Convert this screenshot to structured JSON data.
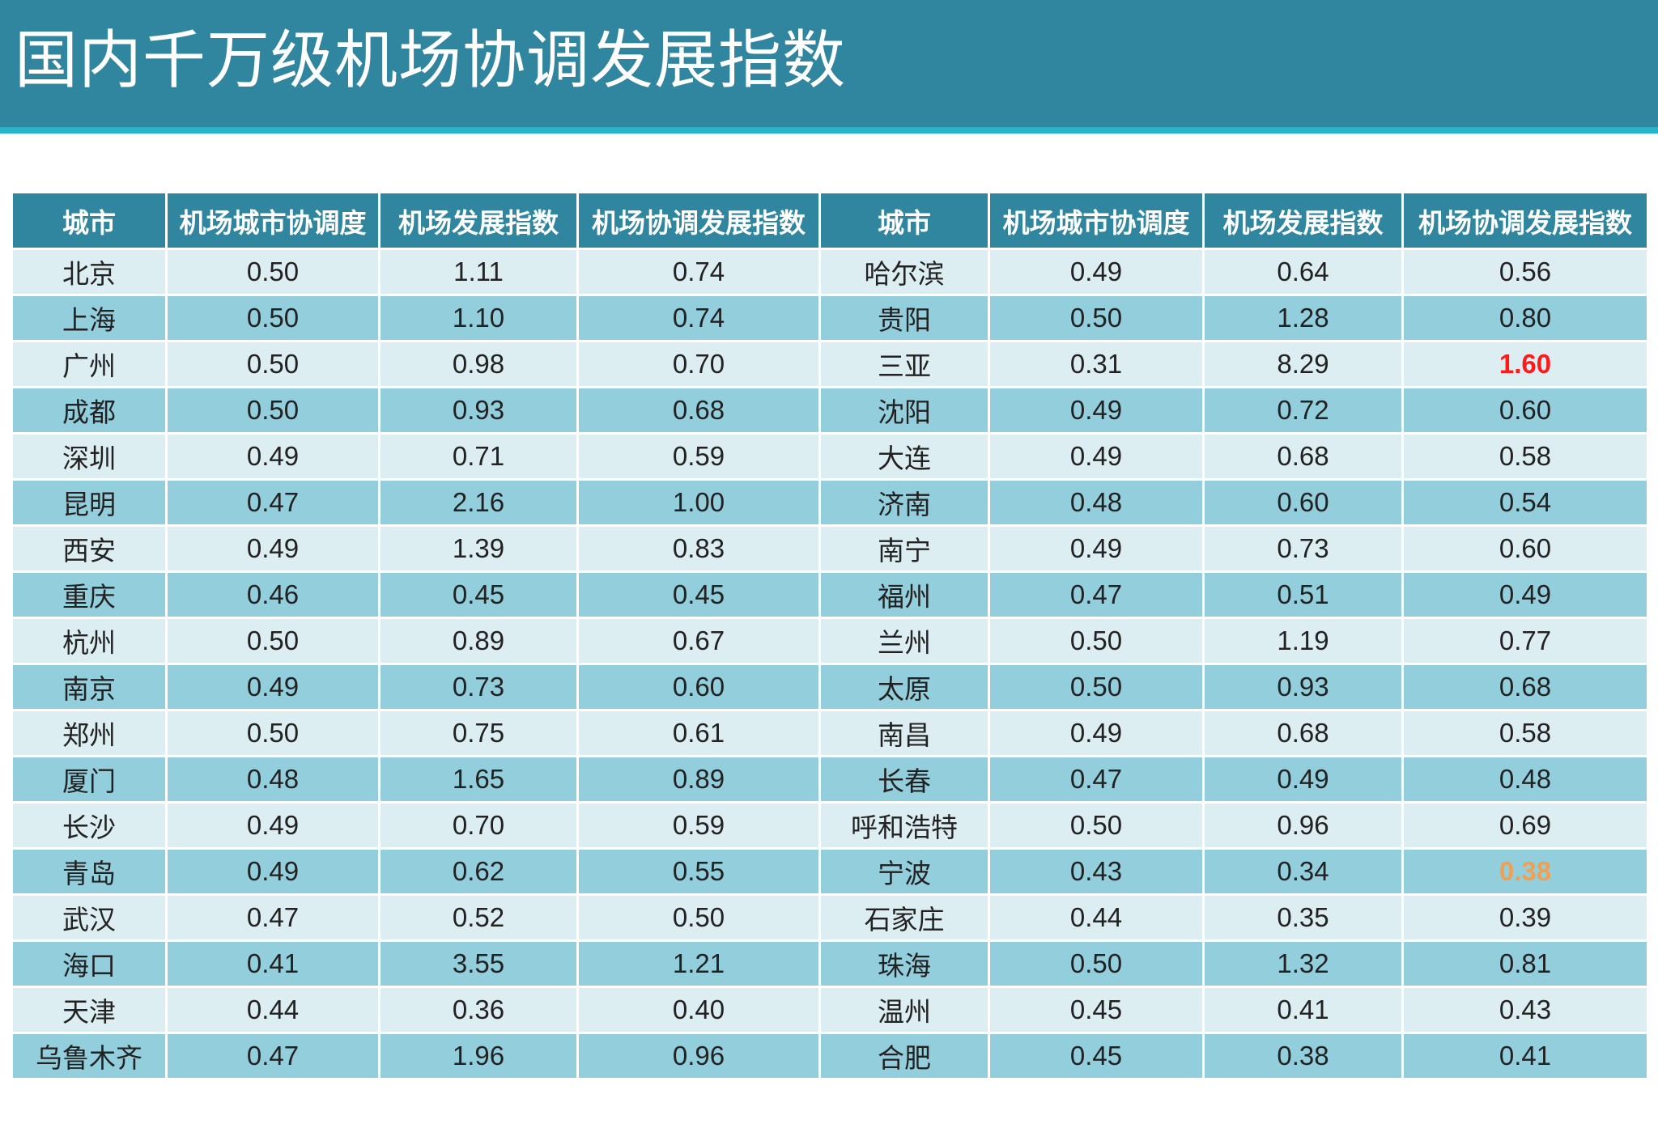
{
  "title": "国内千万级机场协调发展指数",
  "colors": {
    "header_bg": "#30869E",
    "accent_line": "#24B4CC",
    "row_light": "#DDEEF3",
    "row_dark": "#93CEDD",
    "highlight_red": "#FF1A1A",
    "highlight_orange": "#F0A050"
  },
  "table": {
    "headers": [
      "城市",
      "机场城市协调度",
      "机场发展指数",
      "机场协调发展指数",
      "城市",
      "机场城市协调度",
      "机场发展指数",
      "机场协调发展指数"
    ],
    "rows": [
      [
        "北京",
        "0.50",
        "1.11",
        "0.74",
        "哈尔滨",
        "0.49",
        "0.64",
        "0.56"
      ],
      [
        "上海",
        "0.50",
        "1.10",
        "0.74",
        "贵阳",
        "0.50",
        "1.28",
        "0.80"
      ],
      [
        "广州",
        "0.50",
        "0.98",
        "0.70",
        "三亚",
        "0.31",
        "8.29",
        "1.60"
      ],
      [
        "成都",
        "0.50",
        "0.93",
        "0.68",
        "沈阳",
        "0.49",
        "0.72",
        "0.60"
      ],
      [
        "深圳",
        "0.49",
        "0.71",
        "0.59",
        "大连",
        "0.49",
        "0.68",
        "0.58"
      ],
      [
        "昆明",
        "0.47",
        "2.16",
        "1.00",
        "济南",
        "0.48",
        "0.60",
        "0.54"
      ],
      [
        "西安",
        "0.49",
        "1.39",
        "0.83",
        "南宁",
        "0.49",
        "0.73",
        "0.60"
      ],
      [
        "重庆",
        "0.46",
        "0.45",
        "0.45",
        "福州",
        "0.47",
        "0.51",
        "0.49"
      ],
      [
        "杭州",
        "0.50",
        "0.89",
        "0.67",
        "兰州",
        "0.50",
        "1.19",
        "0.77"
      ],
      [
        "南京",
        "0.49",
        "0.73",
        "0.60",
        "太原",
        "0.50",
        "0.93",
        "0.68"
      ],
      [
        "郑州",
        "0.50",
        "0.75",
        "0.61",
        "南昌",
        "0.49",
        "0.68",
        "0.58"
      ],
      [
        "厦门",
        "0.48",
        "1.65",
        "0.89",
        "长春",
        "0.47",
        "0.49",
        "0.48"
      ],
      [
        "长沙",
        "0.49",
        "0.70",
        "0.59",
        "呼和浩特",
        "0.50",
        "0.96",
        "0.69"
      ],
      [
        "青岛",
        "0.49",
        "0.62",
        "0.55",
        "宁波",
        "0.43",
        "0.34",
        "0.38"
      ],
      [
        "武汉",
        "0.47",
        "0.52",
        "0.50",
        "石家庄",
        "0.44",
        "0.35",
        "0.39"
      ],
      [
        "海口",
        "0.41",
        "3.55",
        "1.21",
        "珠海",
        "0.50",
        "1.32",
        "0.81"
      ],
      [
        "天津",
        "0.44",
        "0.36",
        "0.40",
        "温州",
        "0.45",
        "0.41",
        "0.43"
      ],
      [
        "乌鲁木齐",
        "0.47",
        "1.96",
        "0.96",
        "合肥",
        "0.45",
        "0.38",
        "0.41"
      ]
    ],
    "highlights": [
      {
        "row": 2,
        "col": 7,
        "color": "highlight_red"
      },
      {
        "row": 13,
        "col": 7,
        "color": "highlight_orange"
      }
    ]
  }
}
